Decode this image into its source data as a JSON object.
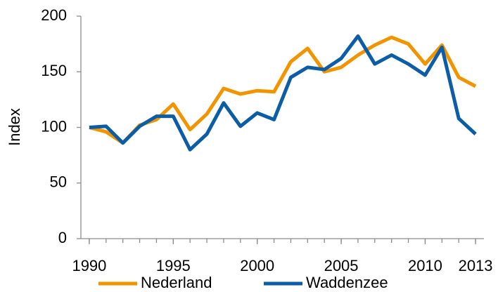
{
  "chart_data": {
    "type": "line",
    "y_label": "Index",
    "x": [
      1990,
      1991,
      1992,
      1993,
      1994,
      1995,
      1996,
      1997,
      1998,
      1999,
      2000,
      2001,
      2002,
      2003,
      2004,
      2005,
      2006,
      2007,
      2008,
      2009,
      2010,
      2011,
      2012,
      2013
    ],
    "series": [
      {
        "name": "Nederland",
        "color": "#f29400",
        "values": [
          100,
          96,
          86,
          102,
          107,
          121,
          98,
          112,
          135,
          130,
          133,
          132,
          159,
          171,
          150,
          154,
          165,
          174,
          181,
          175,
          157,
          174,
          145,
          137
        ]
      },
      {
        "name": "Waddenzee",
        "color": "#0b5da8",
        "values": [
          100,
          101,
          86,
          101,
          110,
          110,
          80,
          94,
          122,
          101,
          113,
          107,
          145,
          154,
          152,
          162,
          182,
          157,
          165,
          157,
          147,
          172,
          108,
          94
        ]
      }
    ],
    "xlim": [
      1989.5,
      2013.5
    ],
    "xticks": [
      1990,
      1995,
      2000,
      2005,
      2010,
      2013
    ],
    "ylim": [
      0,
      200
    ],
    "yticks": [
      0,
      50,
      100,
      150,
      200
    ],
    "grid": false,
    "legend": "bottom"
  }
}
